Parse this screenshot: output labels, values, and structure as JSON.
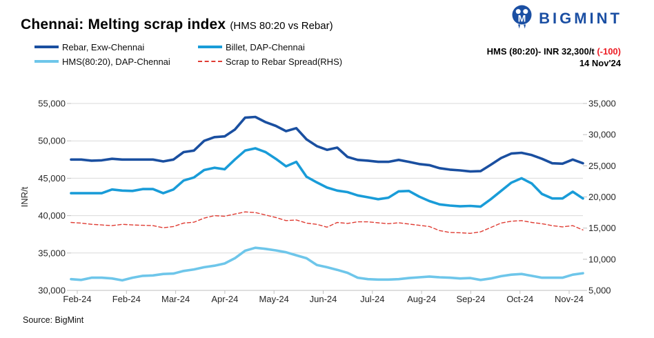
{
  "header": {
    "title": "Chennai: Melting scrap index",
    "subtitle": "(HMS 80:20 vs Rebar)"
  },
  "brand": {
    "name": "BIGMINT",
    "color": "#1b4fa3"
  },
  "annotation": {
    "price_label": "HMS (80:20)- INR 32,300/t",
    "change": "(-100)",
    "change_color": "#ed1c24",
    "date": "14 Nov'24"
  },
  "legend": [
    {
      "label": "Rebar, Exw-Chennai",
      "color": "#1a4fa0",
      "dashed": false
    },
    {
      "label": "Billet, DAP-Chennai",
      "color": "#199cd8",
      "dashed": false
    },
    {
      "label": "HMS(80:20), DAP-Chennai",
      "color": "#6ec6ea",
      "dashed": false
    },
    {
      "label": "Scrap to Rebar Spread(RHS)",
      "color": "#df3b32",
      "dashed": true
    }
  ],
  "source": "Source: BigMint",
  "chart_data": {
    "type": "line",
    "title": "Chennai: Melting scrap index (HMS 80:20 vs Rebar)",
    "grid": true,
    "x_tick_labels": [
      "Feb-24",
      "Feb-24",
      "Mar-24",
      "Apr-24",
      "May-24",
      "Jun-24",
      "Jul-24",
      "Aug-24",
      "Sep-24",
      "Oct-24",
      "Nov-24"
    ],
    "y_left": {
      "label": "INR/t",
      "min": 30000,
      "max": 55000,
      "step": 5000,
      "tick_labels": [
        "55,000",
        "50,000",
        "45,000",
        "40,000",
        "35,000",
        "30,000"
      ]
    },
    "y_right": {
      "label": "",
      "min": 5000,
      "max": 35000,
      "step": 5000,
      "tick_labels": [
        "35,000",
        "30,000",
        "25,000",
        "20,000",
        "15,000",
        "10,000",
        "5,000"
      ]
    },
    "series": [
      {
        "name": "Rebar, Exw-Chennai",
        "axis": "left",
        "color": "#1a4fa0",
        "width": 3.6,
        "dashed": false,
        "values": [
          47500,
          47500,
          47350,
          47400,
          47600,
          47500,
          47500,
          47500,
          47500,
          47250,
          47500,
          48500,
          48700,
          50000,
          50500,
          50600,
          51500,
          53100,
          53200,
          52500,
          52000,
          51300,
          51700,
          50200,
          49300,
          48800,
          49100,
          47850,
          47450,
          47350,
          47200,
          47200,
          47450,
          47200,
          46900,
          46750,
          46350,
          46150,
          46050,
          45900,
          45950,
          46800,
          47700,
          48300,
          48400,
          48100,
          47600,
          47000,
          46950,
          47500,
          47000
        ]
      },
      {
        "name": "Billet, DAP-Chennai",
        "axis": "left",
        "color": "#199cd8",
        "width": 3.6,
        "dashed": false,
        "values": [
          43000,
          43000,
          43000,
          43000,
          43500,
          43350,
          43300,
          43550,
          43550,
          43000,
          43500,
          44700,
          45100,
          46100,
          46400,
          46200,
          47500,
          48700,
          49000,
          48500,
          47600,
          46600,
          47200,
          45200,
          44450,
          43750,
          43350,
          43150,
          42700,
          42450,
          42200,
          42400,
          43250,
          43300,
          42550,
          41950,
          41500,
          41350,
          41250,
          41300,
          41200,
          42200,
          43300,
          44400,
          45000,
          44300,
          42900,
          42300,
          42300,
          43200,
          42300
        ]
      },
      {
        "name": "HMS(80:20), DAP-Chennai",
        "axis": "left",
        "color": "#6ec6ea",
        "width": 3.6,
        "dashed": false,
        "values": [
          31500,
          31400,
          31700,
          31700,
          31600,
          31350,
          31700,
          31950,
          32000,
          32200,
          32250,
          32600,
          32800,
          33100,
          33300,
          33600,
          34300,
          35300,
          35700,
          35550,
          35350,
          35100,
          34700,
          34300,
          33400,
          33100,
          32750,
          32350,
          31700,
          31500,
          31450,
          31450,
          31500,
          31650,
          31750,
          31850,
          31750,
          31700,
          31600,
          31650,
          31400,
          31600,
          31900,
          32100,
          32200,
          31950,
          31700,
          31700,
          31700,
          32100,
          32300
        ]
      },
      {
        "name": "Scrap to Rebar Spread(RHS)",
        "axis": "right",
        "color": "#df3b32",
        "width": 1.4,
        "dashed": true,
        "values": [
          15900,
          15800,
          15600,
          15500,
          15400,
          15600,
          15500,
          15450,
          15400,
          15050,
          15250,
          15800,
          15950,
          16600,
          17000,
          16900,
          17250,
          17600,
          17500,
          17100,
          16700,
          16200,
          16300,
          15800,
          15600,
          15150,
          15900,
          15750,
          16000,
          16000,
          15850,
          15700,
          15850,
          15650,
          15450,
          15250,
          14600,
          14300,
          14250,
          14150,
          14400,
          15100,
          15800,
          16100,
          16200,
          15900,
          15700,
          15400,
          15200,
          15400,
          14700
        ]
      }
    ]
  }
}
